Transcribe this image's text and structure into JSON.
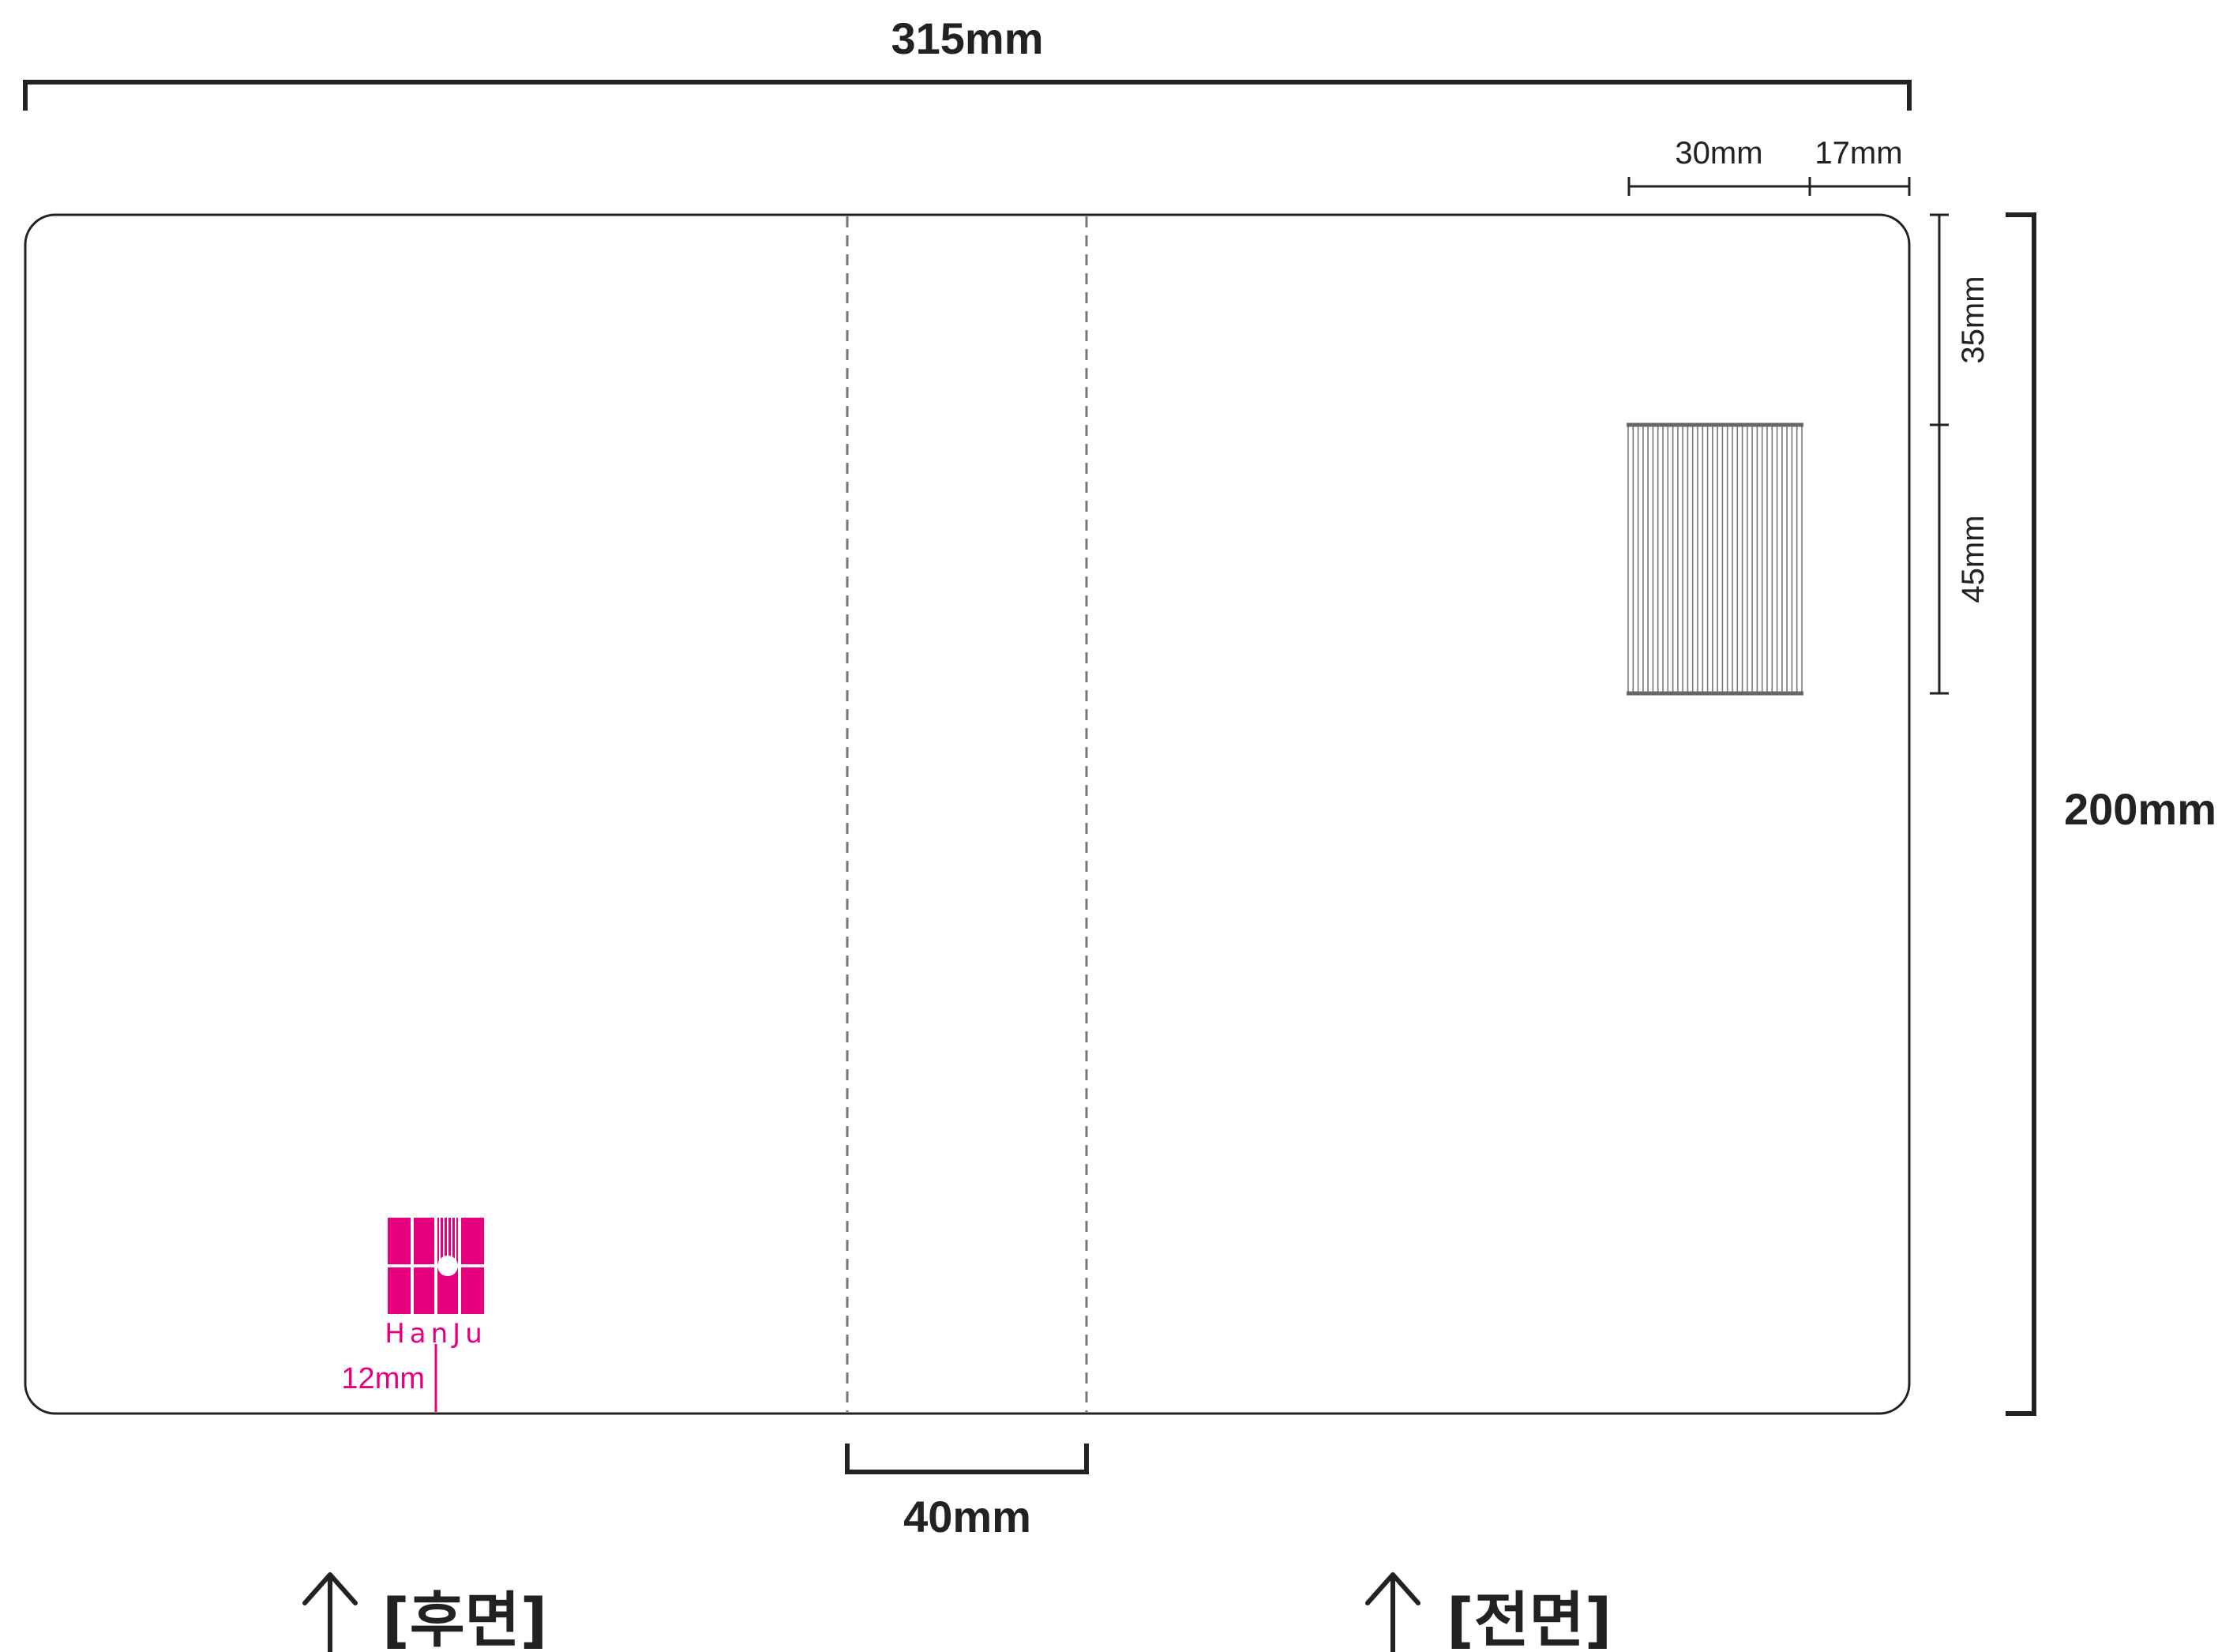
{
  "dimensions": {
    "total_width": "315mm",
    "total_height": "200mm",
    "spine_width": "40mm",
    "label_width": "30mm",
    "label_right_margin": "17mm",
    "label_top_margin": "35mm",
    "label_height": "45mm",
    "logo_bottom_margin": "12mm"
  },
  "sides": {
    "back": "[후면]",
    "front": "[전면]"
  },
  "logo": {
    "text": "HanJu",
    "color": "#e6007e"
  },
  "colors": {
    "line": "#222222",
    "dashed": "#777777",
    "barcode": "#666666",
    "accent": "#e6007e"
  },
  "icons": {
    "side_marker": "arrow-up-icon",
    "logo": "hanju-logo-icon",
    "label": "barcode-label-icon"
  }
}
